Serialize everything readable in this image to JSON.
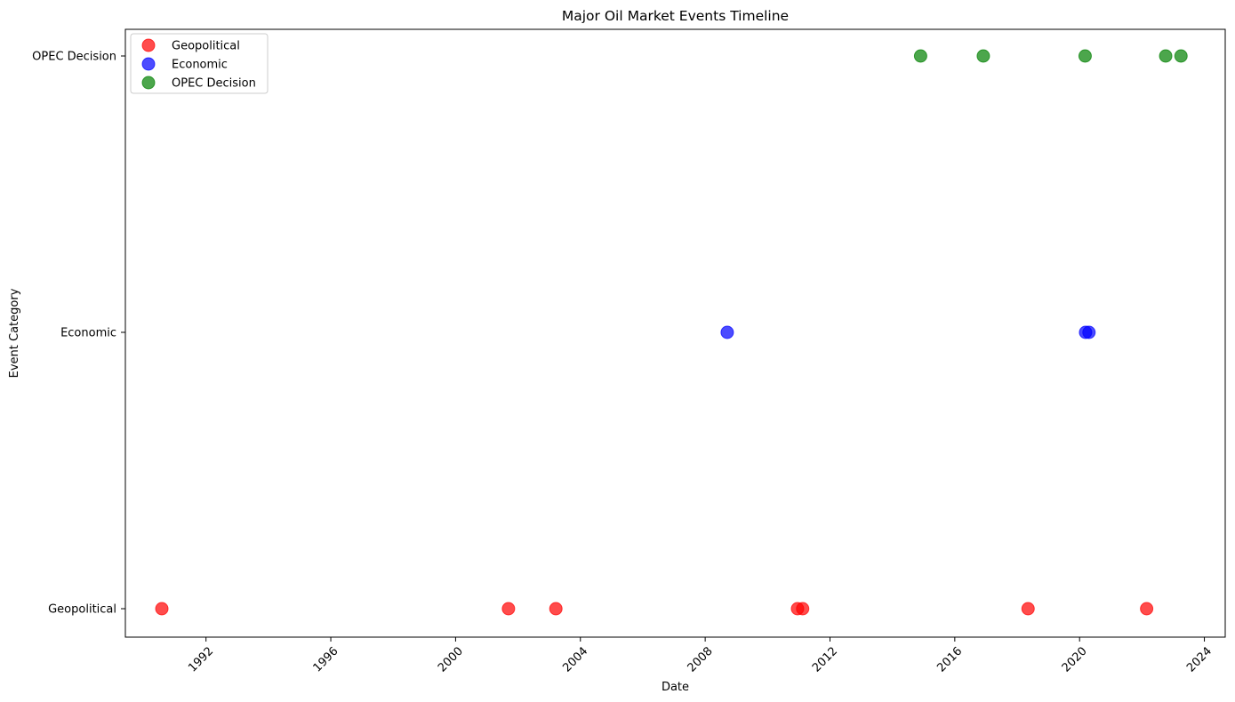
{
  "chart_data": {
    "type": "scatter",
    "title": "Major Oil Market Events Timeline",
    "xlabel": "Date",
    "ylabel": "Event Category",
    "xlim": [
      "1989-06-01",
      "2024-09-01"
    ],
    "x_ticks": [
      "1992",
      "1996",
      "2000",
      "2004",
      "2008",
      "2012",
      "2016",
      "2020",
      "2024"
    ],
    "categories": [
      "Geopolitical",
      "Economic",
      "OPEC Decision"
    ],
    "grid": false,
    "legend_position": "top-left",
    "series": [
      {
        "name": "Geopolitical",
        "color": "#ff0000",
        "x": [
          "1990-08-02",
          "2001-09-11",
          "2003-03-20",
          "2010-12-17",
          "2011-02-15",
          "2018-05-08",
          "2022-02-24"
        ],
        "y": [
          "Geopolitical",
          "Geopolitical",
          "Geopolitical",
          "Geopolitical",
          "Geopolitical",
          "Geopolitical",
          "Geopolitical"
        ]
      },
      {
        "name": "Economic",
        "color": "#0000ff",
        "x": [
          "2008-09-15",
          "2020-03-11",
          "2020-04-20"
        ],
        "y": [
          "Economic",
          "Economic",
          "Economic"
        ]
      },
      {
        "name": "OPEC Decision",
        "color": "#008000",
        "x": [
          "2014-11-27",
          "2016-11-30",
          "2020-03-06",
          "2022-10-05",
          "2023-04-02"
        ],
        "y": [
          "OPEC Decision",
          "OPEC Decision",
          "OPEC Decision",
          "OPEC Decision",
          "OPEC Decision"
        ]
      }
    ]
  }
}
